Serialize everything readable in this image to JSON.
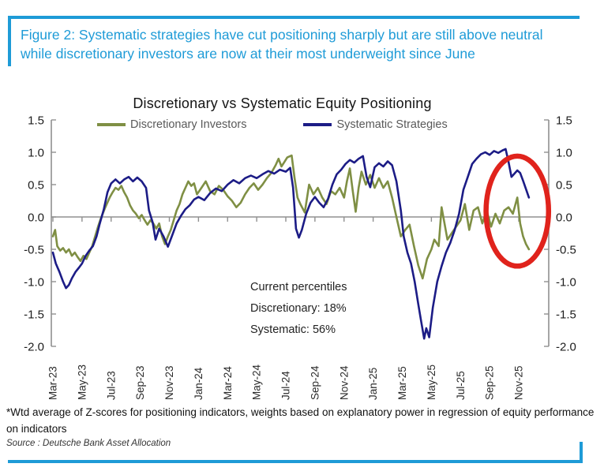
{
  "caption": "Figure 2: Systematic strategies have cut positioning sharply but are still above neutral while discretionary investors are now at their most underweight since June",
  "footnote": "*Wtd average of Z-scores for positioning indicators, weights based on explanatory power in regression of equity performance on indicators",
  "source": "Source : Deutsche Bank Asset Allocation",
  "annotation": {
    "line1": "Current percentiles",
    "line2": "Discretionary: 18%",
    "line3": "Systematic: 56%"
  },
  "colors": {
    "caption_blue": "#1e9bd7",
    "discretionary_green": "#7f8f44",
    "systematic_navy": "#1c1c86",
    "highlight_red": "#e0231c",
    "axis_gray": "#909090"
  },
  "chart_data": {
    "type": "line",
    "title": "Discretionary  vs Systematic Equity Positioning",
    "xlabel": "",
    "ylabel": "",
    "ylim": [
      -2.0,
      1.5
    ],
    "grid": "zero-line only",
    "legend_position": "top",
    "dual_y_axis": true,
    "y_tick_labels": [
      "1.5",
      "1.0",
      "0.5",
      "0.0",
      "-0.5",
      "-1.0",
      "-1.5",
      "-2.0"
    ],
    "x_tick_labels": [
      "Mar-23",
      "May-23",
      "Jul-23",
      "Sep-23",
      "Nov-23",
      "Jan-24",
      "Mar-24",
      "May-24",
      "Jul-24",
      "Sep-24",
      "Nov-24",
      "Jan-25",
      "Mar-25",
      "May-25",
      "Jul-25",
      "Sep-25",
      "Nov-25"
    ],
    "x_unit": "months since Mar-23",
    "series": [
      {
        "name": "Discretionary Investors",
        "color": "#7f8f44",
        "points": [
          [
            0,
            -0.3
          ],
          [
            0.15,
            -0.2
          ],
          [
            0.3,
            -0.45
          ],
          [
            0.5,
            -0.52
          ],
          [
            0.7,
            -0.48
          ],
          [
            0.9,
            -0.55
          ],
          [
            1.1,
            -0.5
          ],
          [
            1.3,
            -0.6
          ],
          [
            1.5,
            -0.55
          ],
          [
            1.7,
            -0.62
          ],
          [
            1.9,
            -0.68
          ],
          [
            2.1,
            -0.6
          ],
          [
            2.3,
            -0.65
          ],
          [
            2.5,
            -0.55
          ],
          [
            2.7,
            -0.45
          ],
          [
            2.9,
            -0.3
          ],
          [
            3.1,
            -0.15
          ],
          [
            3.3,
            -0.02
          ],
          [
            3.6,
            0.15
          ],
          [
            3.9,
            0.3
          ],
          [
            4.1,
            0.38
          ],
          [
            4.3,
            0.45
          ],
          [
            4.5,
            0.42
          ],
          [
            4.7,
            0.48
          ],
          [
            4.9,
            0.38
          ],
          [
            5.1,
            0.3
          ],
          [
            5.3,
            0.18
          ],
          [
            5.5,
            0.1
          ],
          [
            5.7,
            0.05
          ],
          [
            5.9,
            -0.02
          ],
          [
            6.1,
            0.03
          ],
          [
            6.3,
            -0.05
          ],
          [
            6.5,
            -0.12
          ],
          [
            6.7,
            -0.05
          ],
          [
            6.9,
            -0.1
          ],
          [
            7.1,
            -0.18
          ],
          [
            7.3,
            -0.1
          ],
          [
            7.5,
            -0.3
          ],
          [
            7.7,
            -0.42
          ],
          [
            7.9,
            -0.3
          ],
          [
            8.1,
            -0.2
          ],
          [
            8.3,
            -0.05
          ],
          [
            8.5,
            0.1
          ],
          [
            8.7,
            0.2
          ],
          [
            8.9,
            0.35
          ],
          [
            9.1,
            0.45
          ],
          [
            9.3,
            0.55
          ],
          [
            9.5,
            0.48
          ],
          [
            9.7,
            0.52
          ],
          [
            9.9,
            0.35
          ],
          [
            10.2,
            0.45
          ],
          [
            10.5,
            0.55
          ],
          [
            10.8,
            0.4
          ],
          [
            11.1,
            0.35
          ],
          [
            11.4,
            0.48
          ],
          [
            11.7,
            0.42
          ],
          [
            12,
            0.32
          ],
          [
            12.3,
            0.25
          ],
          [
            12.6,
            0.15
          ],
          [
            12.9,
            0.22
          ],
          [
            13.2,
            0.35
          ],
          [
            13.5,
            0.45
          ],
          [
            13.8,
            0.52
          ],
          [
            14.1,
            0.42
          ],
          [
            14.4,
            0.5
          ],
          [
            14.7,
            0.6
          ],
          [
            15,
            0.68
          ],
          [
            15.3,
            0.8
          ],
          [
            15.5,
            0.9
          ],
          [
            15.7,
            0.78
          ],
          [
            15.9,
            0.85
          ],
          [
            16.1,
            0.92
          ],
          [
            16.4,
            0.95
          ],
          [
            16.6,
            0.6
          ],
          [
            16.8,
            0.3
          ],
          [
            17,
            0.2
          ],
          [
            17.3,
            0.07
          ],
          [
            17.6,
            0.5
          ],
          [
            17.9,
            0.35
          ],
          [
            18.2,
            0.45
          ],
          [
            18.5,
            0.3
          ],
          [
            18.8,
            0.2
          ],
          [
            19.1,
            0.4
          ],
          [
            19.4,
            0.35
          ],
          [
            19.7,
            0.45
          ],
          [
            20,
            0.3
          ],
          [
            20.2,
            0.55
          ],
          [
            20.4,
            0.75
          ],
          [
            20.6,
            0.4
          ],
          [
            20.8,
            0.08
          ],
          [
            21,
            0.45
          ],
          [
            21.2,
            0.7
          ],
          [
            21.5,
            0.5
          ],
          [
            21.8,
            0.65
          ],
          [
            22.1,
            0.45
          ],
          [
            22.4,
            0.6
          ],
          [
            22.7,
            0.45
          ],
          [
            23,
            0.55
          ],
          [
            23.3,
            0.3
          ],
          [
            23.6,
            0
          ],
          [
            23.9,
            -0.3
          ],
          [
            24.2,
            -0.2
          ],
          [
            24.5,
            -0.12
          ],
          [
            24.8,
            -0.45
          ],
          [
            25.1,
            -0.75
          ],
          [
            25.4,
            -0.95
          ],
          [
            25.7,
            -0.65
          ],
          [
            26,
            -0.5
          ],
          [
            26.2,
            -0.35
          ],
          [
            26.5,
            -0.45
          ],
          [
            26.7,
            0.15
          ],
          [
            26.9,
            -0.1
          ],
          [
            27.1,
            -0.35
          ],
          [
            27.4,
            -0.25
          ],
          [
            27.7,
            -0.15
          ],
          [
            28,
            -0.05
          ],
          [
            28.3,
            0.2
          ],
          [
            28.6,
            -0.2
          ],
          [
            28.9,
            0.1
          ],
          [
            29.2,
            0.15
          ],
          [
            29.5,
            -0.1
          ],
          [
            29.8,
            0.1
          ],
          [
            30.1,
            -0.15
          ],
          [
            30.4,
            0.05
          ],
          [
            30.7,
            -0.1
          ],
          [
            31,
            0.1
          ],
          [
            31.3,
            0.15
          ],
          [
            31.6,
            0.05
          ],
          [
            31.9,
            0.3
          ],
          [
            32.1,
            -0.1
          ],
          [
            32.3,
            -0.3
          ],
          [
            32.5,
            -0.42
          ],
          [
            32.7,
            -0.5
          ]
        ]
      },
      {
        "name": "Systematic Strategies",
        "color": "#1c1c86",
        "points": [
          [
            0,
            -0.55
          ],
          [
            0.2,
            -0.72
          ],
          [
            0.45,
            -0.85
          ],
          [
            0.7,
            -1.0
          ],
          [
            0.9,
            -1.1
          ],
          [
            1.1,
            -1.05
          ],
          [
            1.3,
            -0.95
          ],
          [
            1.55,
            -0.85
          ],
          [
            1.8,
            -0.78
          ],
          [
            2,
            -0.72
          ],
          [
            2.25,
            -0.6
          ],
          [
            2.5,
            -0.52
          ],
          [
            2.75,
            -0.45
          ],
          [
            3,
            -0.3
          ],
          [
            3.2,
            -0.12
          ],
          [
            3.5,
            0.12
          ],
          [
            3.75,
            0.38
          ],
          [
            4,
            0.52
          ],
          [
            4.3,
            0.58
          ],
          [
            4.6,
            0.52
          ],
          [
            4.9,
            0.58
          ],
          [
            5.2,
            0.62
          ],
          [
            5.5,
            0.55
          ],
          [
            5.8,
            0.61
          ],
          [
            6.1,
            0.55
          ],
          [
            6.4,
            0.45
          ],
          [
            6.6,
            0.1
          ],
          [
            6.85,
            -0.08
          ],
          [
            7.05,
            -0.35
          ],
          [
            7.3,
            -0.18
          ],
          [
            7.6,
            -0.3
          ],
          [
            7.9,
            -0.46
          ],
          [
            8.2,
            -0.28
          ],
          [
            8.5,
            -0.1
          ],
          [
            8.8,
            0.02
          ],
          [
            9.1,
            0.12
          ],
          [
            9.4,
            0.18
          ],
          [
            9.7,
            0.27
          ],
          [
            10,
            0.31
          ],
          [
            10.4,
            0.26
          ],
          [
            10.8,
            0.37
          ],
          [
            11.2,
            0.44
          ],
          [
            11.6,
            0.4
          ],
          [
            12,
            0.5
          ],
          [
            12.4,
            0.57
          ],
          [
            12.8,
            0.52
          ],
          [
            13.2,
            0.6
          ],
          [
            13.6,
            0.64
          ],
          [
            14,
            0.6
          ],
          [
            14.4,
            0.66
          ],
          [
            14.8,
            0.71
          ],
          [
            15.2,
            0.67
          ],
          [
            15.6,
            0.73
          ],
          [
            16,
            0.7
          ],
          [
            16.3,
            0.76
          ],
          [
            16.5,
            0.45
          ],
          [
            16.7,
            -0.18
          ],
          [
            16.9,
            -0.32
          ],
          [
            17.1,
            -0.2
          ],
          [
            17.4,
            0.05
          ],
          [
            17.7,
            0.22
          ],
          [
            18,
            0.31
          ],
          [
            18.3,
            0.22
          ],
          [
            18.6,
            0.15
          ],
          [
            18.9,
            0.28
          ],
          [
            19.2,
            0.5
          ],
          [
            19.5,
            0.66
          ],
          [
            19.8,
            0.73
          ],
          [
            20.1,
            0.82
          ],
          [
            20.4,
            0.88
          ],
          [
            20.7,
            0.84
          ],
          [
            21,
            0.9
          ],
          [
            21.3,
            0.94
          ],
          [
            21.55,
            0.62
          ],
          [
            21.8,
            0.46
          ],
          [
            22.1,
            0.77
          ],
          [
            22.4,
            0.83
          ],
          [
            22.7,
            0.78
          ],
          [
            23,
            0.86
          ],
          [
            23.3,
            0.8
          ],
          [
            23.6,
            0.55
          ],
          [
            23.9,
            0.1
          ],
          [
            24.1,
            -0.3
          ],
          [
            24.35,
            -0.55
          ],
          [
            24.6,
            -0.72
          ],
          [
            24.85,
            -1.0
          ],
          [
            25.1,
            -1.35
          ],
          [
            25.3,
            -1.62
          ],
          [
            25.5,
            -1.88
          ],
          [
            25.65,
            -1.72
          ],
          [
            25.85,
            -1.86
          ],
          [
            26.1,
            -1.4
          ],
          [
            26.4,
            -1.0
          ],
          [
            26.7,
            -0.76
          ],
          [
            27,
            -0.55
          ],
          [
            27.3,
            -0.4
          ],
          [
            27.6,
            -0.2
          ],
          [
            27.9,
            0.05
          ],
          [
            28.2,
            0.42
          ],
          [
            28.5,
            0.62
          ],
          [
            28.8,
            0.82
          ],
          [
            29.1,
            0.9
          ],
          [
            29.4,
            0.97
          ],
          [
            29.7,
            1.0
          ],
          [
            30,
            0.96
          ],
          [
            30.3,
            1.02
          ],
          [
            30.6,
            0.99
          ],
          [
            30.9,
            1.03
          ],
          [
            31.1,
            1.05
          ],
          [
            31.3,
            0.85
          ],
          [
            31.5,
            0.62
          ],
          [
            31.7,
            0.67
          ],
          [
            31.9,
            0.72
          ],
          [
            32.1,
            0.68
          ],
          [
            32.3,
            0.56
          ],
          [
            32.5,
            0.43
          ],
          [
            32.7,
            0.3
          ]
        ]
      }
    ],
    "annotation_ellipse": {
      "meaning": "highlights recent sharp cut in positioning (Nov-25)",
      "center_month": 31.9,
      "center_value": 0.09,
      "rx_months": 2.15,
      "ry_value": 0.85,
      "color": "#e0231c"
    }
  }
}
